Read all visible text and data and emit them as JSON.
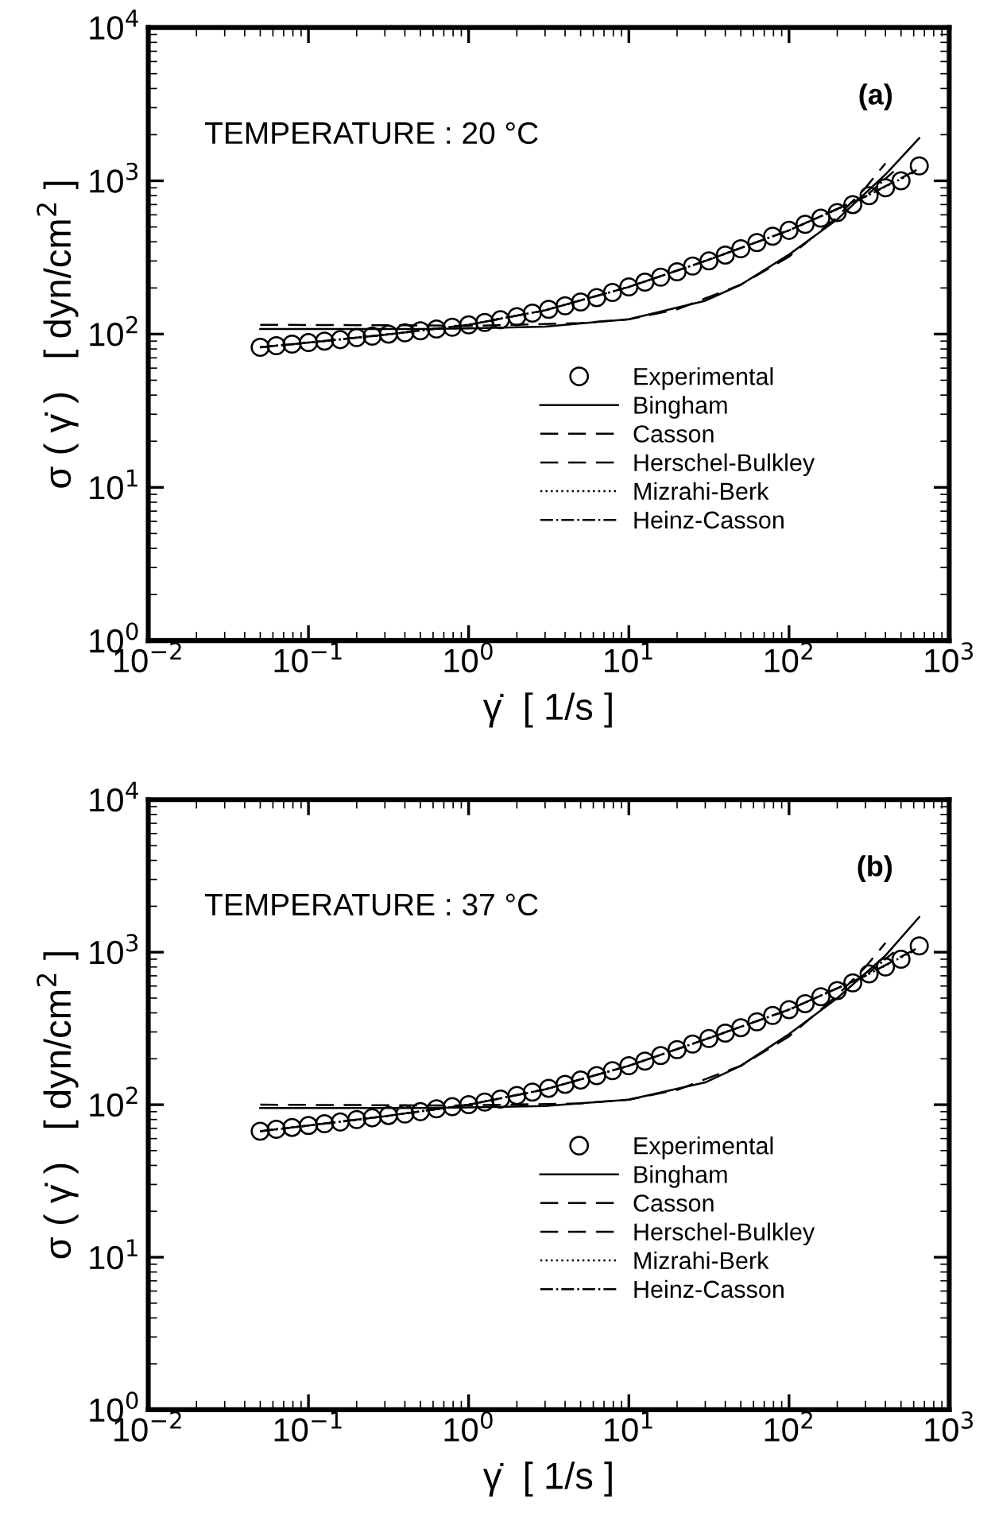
{
  "chart_data": [
    {
      "type": "line",
      "annotations": [
        "TEMPERATURE : 20 °C",
        "(a)"
      ],
      "xlabel": "γ̇  [ 1/s ]",
      "ylabel": "σ ( γ̇ )   [ dyn/cm$^{2}$ ]",
      "log": "xy",
      "legend": "lower right",
      "grid": false,
      "xlim": [
        0.01,
        1000
      ],
      "xticks": [
        {
          "value": 0.01,
          "label": "10$^{−2}$"
        },
        {
          "value": 0.1,
          "label": "10$^{−1}$"
        },
        {
          "value": 1,
          "label": "10$^{0}$"
        },
        {
          "value": 10,
          "label": "10$^{1}$"
        },
        {
          "value": 100,
          "label": "10$^{2}$"
        },
        {
          "value": 1000,
          "label": "10$^{3}$"
        }
      ],
      "ylim": [
        1,
        10000
      ],
      "yticks": [
        {
          "value": 1,
          "label": "10$^{0}$"
        },
        {
          "value": 10,
          "label": "10$^{1}$"
        },
        {
          "value": 100,
          "label": "10$^{2}$"
        },
        {
          "value": 1000,
          "label": "10$^{3}$"
        },
        {
          "value": 10000,
          "label": "10$^{4}$"
        }
      ],
      "series": [
        {
          "name": "Experimental",
          "type": "scatter",
          "marker": "circle",
          "color": "#000000",
          "x": [
            0.05,
            0.063,
            0.079,
            0.1,
            0.126,
            0.158,
            0.2,
            0.25,
            0.316,
            0.4,
            0.5,
            0.63,
            0.79,
            1,
            1.26,
            1.58,
            2,
            2.5,
            3.16,
            4,
            5,
            6.3,
            7.9,
            10,
            12.6,
            15.8,
            20,
            25,
            31.6,
            40,
            50,
            63,
            79,
            100,
            126,
            158,
            200,
            250,
            316,
            400,
            500,
            650
          ],
          "values": [
            82,
            84,
            86,
            88,
            90,
            92,
            95,
            97,
            100,
            102,
            105,
            108,
            111,
            115,
            119,
            124,
            130,
            137,
            145,
            153,
            162,
            173,
            187,
            203,
            218,
            235,
            255,
            278,
            300,
            328,
            360,
            395,
            435,
            475,
            520,
            570,
            620,
            700,
            800,
            900,
            1000,
            1250
          ]
        },
        {
          "name": "Bingham",
          "line_style": "solid",
          "color": "#000000",
          "x": [
            0.05,
            0.5,
            1,
            3,
            10,
            30,
            50,
            100,
            200,
            400,
            650
          ],
          "values": [
            108,
            108,
            109,
            112,
            125,
            165,
            210,
            330,
            560,
            1100,
            1900
          ]
        },
        {
          "name": "Casson",
          "line_style": "dashed",
          "color": "#000000",
          "x": [
            0.05,
            0.5,
            1,
            5,
            10,
            20,
            50,
            100,
            200,
            300,
            400
          ],
          "values": [
            115,
            114,
            113,
            118,
            125,
            145,
            210,
            320,
            580,
            900,
            1300
          ]
        },
        {
          "name": "Herschel-Bulkley",
          "line_style": "dashed",
          "color": "#000000",
          "x": [
            0.05,
            0.1,
            0.3,
            1,
            3,
            10,
            30,
            100,
            300,
            650
          ],
          "values": [
            82,
            88,
            99,
            115,
            143,
            203,
            300,
            475,
            790,
            1200
          ]
        },
        {
          "name": "Mizrahi-Berk",
          "line_style": "dotted",
          "color": "#000000",
          "x": [
            0.05,
            0.1,
            0.3,
            1,
            3,
            10,
            30,
            100,
            300,
            600
          ],
          "values": [
            82,
            88,
            99,
            115,
            143,
            203,
            300,
            475,
            790,
            1130
          ]
        },
        {
          "name": "Heinz-Casson",
          "line_style": "dashdot",
          "color": "#000000",
          "x": [
            0.05,
            0.1,
            0.3,
            1,
            3,
            10,
            30,
            100,
            300,
            450
          ],
          "values": [
            82,
            88,
            99,
            115,
            143,
            203,
            300,
            475,
            790,
            1150
          ]
        }
      ]
    },
    {
      "type": "line",
      "annotations": [
        "TEMPERATURE : 37 °C",
        "(b)"
      ],
      "xlabel": "γ̇  [ 1/s ]",
      "ylabel": "σ ( γ̇ )   [ dyn/cm$^{2}$ ]",
      "log": "xy",
      "legend": "lower right",
      "grid": false,
      "xlim": [
        0.01,
        1000
      ],
      "xticks": [
        {
          "value": 0.01,
          "label": "10$^{−2}$"
        },
        {
          "value": 0.1,
          "label": "10$^{−1}$"
        },
        {
          "value": 1,
          "label": "10$^{0}$"
        },
        {
          "value": 10,
          "label": "10$^{1}$"
        },
        {
          "value": 100,
          "label": "10$^{2}$"
        },
        {
          "value": 1000,
          "label": "10$^{3}$"
        }
      ],
      "ylim": [
        1,
        10000
      ],
      "yticks": [
        {
          "value": 1,
          "label": "10$^{0}$"
        },
        {
          "value": 10,
          "label": "10$^{1}$"
        },
        {
          "value": 100,
          "label": "10$^{2}$"
        },
        {
          "value": 1000,
          "label": "10$^{3}$"
        },
        {
          "value": 10000,
          "label": "10$^{4}$"
        }
      ],
      "series": [
        {
          "name": "Experimental",
          "type": "scatter",
          "marker": "circle",
          "color": "#000000",
          "x": [
            0.05,
            0.063,
            0.079,
            0.1,
            0.126,
            0.158,
            0.2,
            0.25,
            0.316,
            0.4,
            0.5,
            0.63,
            0.79,
            1,
            1.26,
            1.58,
            2,
            2.5,
            3.16,
            4,
            5,
            6.3,
            7.9,
            10,
            12.6,
            15.8,
            20,
            25,
            31.6,
            40,
            50,
            63,
            79,
            100,
            126,
            158,
            200,
            250,
            316,
            400,
            500,
            650
          ],
          "values": [
            67,
            69,
            71,
            73,
            75,
            77,
            80,
            82,
            85,
            87,
            90,
            94,
            97,
            100,
            104,
            109,
            115,
            121,
            128,
            136,
            145,
            155,
            167,
            180,
            193,
            210,
            230,
            250,
            272,
            295,
            320,
            350,
            385,
            420,
            460,
            510,
            560,
            630,
            720,
            800,
            900,
            1100
          ]
        },
        {
          "name": "Bingham",
          "line_style": "solid",
          "color": "#000000",
          "x": [
            0.05,
            0.5,
            1,
            3,
            10,
            30,
            50,
            100,
            200,
            400,
            650
          ],
          "values": [
            95,
            95,
            96,
            98,
            108,
            140,
            180,
            290,
            500,
            950,
            1700
          ]
        },
        {
          "name": "Casson",
          "line_style": "dashed",
          "color": "#000000",
          "x": [
            0.05,
            0.5,
            1,
            5,
            10,
            20,
            50,
            100,
            200,
            300,
            400
          ],
          "values": [
            100,
            99,
            99,
            102,
            108,
            125,
            180,
            280,
            520,
            800,
            1150
          ]
        },
        {
          "name": "Herschel-Bulkley",
          "line_style": "dashed",
          "color": "#000000",
          "x": [
            0.05,
            0.1,
            0.3,
            1,
            3,
            10,
            30,
            100,
            300,
            650
          ],
          "values": [
            67,
            73,
            84,
            100,
            126,
            180,
            268,
            420,
            700,
            1080
          ]
        },
        {
          "name": "Mizrahi-Berk",
          "line_style": "dotted",
          "color": "#000000",
          "x": [
            0.05,
            0.1,
            0.3,
            1,
            3,
            10,
            30,
            100,
            300,
            600
          ],
          "values": [
            67,
            73,
            84,
            100,
            126,
            180,
            268,
            420,
            700,
            1020
          ]
        },
        {
          "name": "Heinz-Casson",
          "line_style": "dashdot",
          "color": "#000000",
          "x": [
            0.05,
            0.1,
            0.3,
            1,
            3,
            10,
            30,
            100,
            300,
            450
          ],
          "values": [
            67,
            73,
            84,
            100,
            126,
            180,
            268,
            420,
            700,
            1000
          ]
        }
      ]
    }
  ]
}
